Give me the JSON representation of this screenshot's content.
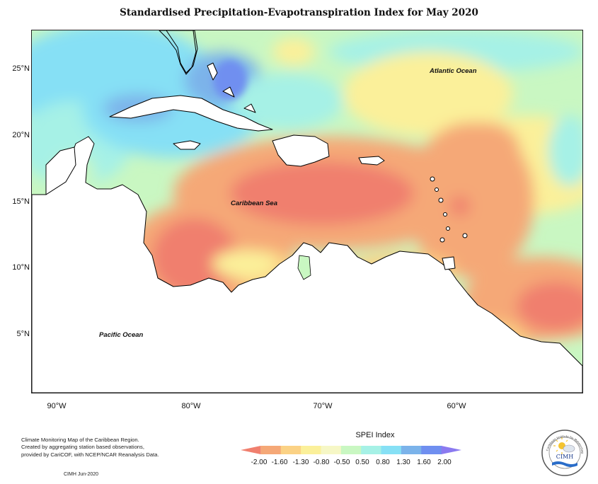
{
  "title": "Standardised Precipitation-Evapotranspiration Index for May 2020",
  "map": {
    "lat_labels": [
      "25°N",
      "20°N",
      "15°N",
      "10°N",
      "5°N"
    ],
    "lon_labels": [
      "90°W",
      "80°W",
      "70°W",
      "60°W"
    ],
    "ocean_labels": {
      "atlantic": "Atlantic Ocean",
      "caribbean": "Caribbean Sea",
      "pacific": "Pacific Ocean"
    }
  },
  "legend": {
    "title": "SPEI Index",
    "ticks": [
      "-2.00",
      "-1.60",
      "-1.30",
      "-0.80",
      "-0.50",
      "0.50",
      "0.80",
      "1.30",
      "1.60",
      "2.00"
    ],
    "colors": [
      "#f07f6e",
      "#f5a877",
      "#fbd285",
      "#fbf09a",
      "#f6f7c6",
      "#c9f7c2",
      "#a6f1e6",
      "#86e0f5",
      "#7bb3ea",
      "#6f8ff0",
      "#8b7af0"
    ]
  },
  "notes": {
    "line1": "Climate Monitoring Map of the Caribbean Region.",
    "line2": "Created by aggregating station based observations,",
    "line3": "provided by CariCOF, with NCEP/NCAR Reanalysis Data.",
    "credit": "CIMH  Jun-2020"
  },
  "logo": {
    "text": "CIMH",
    "ring_text": "Caribbean Institute for Meteorology and Hydrology"
  }
}
